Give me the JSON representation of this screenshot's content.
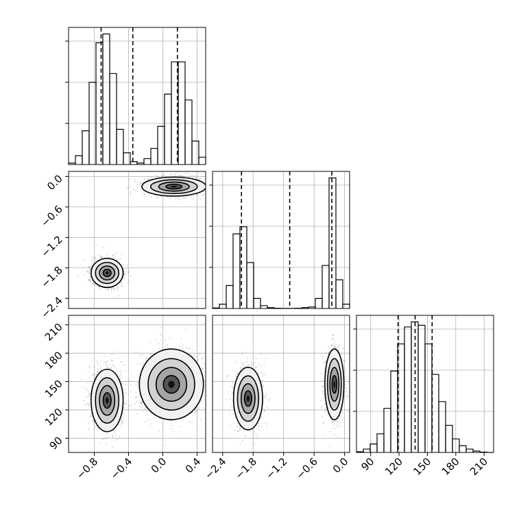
{
  "chart_data": {
    "type": "corner",
    "title": "",
    "grid": true,
    "parameters": [
      {
        "range": [
          -1.1,
          0.5
        ],
        "ticks": [
          -0.8,
          -0.4,
          0.0,
          0.4
        ],
        "tick_labels": [
          "−0.8",
          "−0.4",
          "0.0",
          "0.4"
        ],
        "quantiles": [
          -0.72,
          -0.35,
          0.17
        ],
        "histogram": {
          "edges": [
            -1.1,
            -1.02,
            -0.94,
            -0.86,
            -0.78,
            -0.7,
            -0.62,
            -0.54,
            -0.46,
            -0.38,
            -0.3,
            -0.22,
            -0.14,
            -0.06,
            0.02,
            0.1,
            0.18,
            0.26,
            0.34,
            0.42,
            0.5
          ],
          "counts": [
            0.5,
            3,
            11.5,
            28,
            41.5,
            44.5,
            31,
            12,
            4,
            1,
            0.5,
            2,
            5.5,
            13,
            24,
            35,
            35,
            22,
            8,
            2.5
          ]
        }
      },
      {
        "range": [
          -2.6,
          0.1
        ],
        "ticks": [
          -2.4,
          -1.8,
          -1.2,
          -0.6,
          0.0
        ],
        "tick_labels": [
          "−2.4",
          "−1.8",
          "−1.2",
          "−0.6",
          "0.0"
        ],
        "quantiles": [
          -2.03,
          -1.08,
          -0.25
        ],
        "histogram": {
          "edges": [
            -2.6,
            -2.465,
            -2.33,
            -2.195,
            -2.06,
            -1.925,
            -1.79,
            -1.655,
            -1.52,
            -1.385,
            -1.25,
            -1.115,
            -0.98,
            -0.845,
            -0.71,
            -0.575,
            -0.44,
            -0.305,
            -0.17,
            -0.035,
            0.1
          ],
          "counts": [
            0.2,
            1.5,
            8,
            26,
            28.5,
            16,
            3.5,
            1,
            0.3,
            0.1,
            0.05,
            0.05,
            0.1,
            0.3,
            0.5,
            3.5,
            15,
            45.5,
            10,
            1.5
          ]
        }
      },
      {
        "range": [
          75,
          220
        ],
        "ticks": [
          90,
          120,
          150,
          180,
          210
        ],
        "tick_labels": [
          "90",
          "120",
          "150",
          "180",
          "210"
        ],
        "quantiles": [
          119,
          137,
          155
        ],
        "histogram": {
          "edges": [
            75,
            82.25,
            89.5,
            96.75,
            104,
            111.25,
            118.5,
            125.75,
            133,
            140.25,
            147.5,
            154.75,
            162,
            169.25,
            176.5,
            183.75,
            191,
            198.25,
            205.5,
            212.75,
            220
          ],
          "counts": [
            0.2,
            1,
            2.5,
            5.5,
            13,
            24,
            32,
            37,
            38.5,
            37.5,
            32,
            23,
            15,
            8,
            4,
            2,
            1,
            0.4,
            0.1,
            0
          ]
        }
      }
    ],
    "clusters_2d": [
      {
        "pair": [
          0,
          1
        ],
        "center": [
          -0.65,
          -1.9
        ],
        "sigma": [
          0.085,
          0.13
        ],
        "points": 1600
      },
      {
        "pair": [
          0,
          1
        ],
        "center": [
          0.13,
          -0.2
        ],
        "sigma": [
          0.17,
          0.085
        ],
        "points": 1600
      },
      {
        "pair": [
          0,
          2
        ],
        "center": [
          -0.65,
          130
        ],
        "sigma": [
          0.085,
          15
        ],
        "points": 1600
      },
      {
        "pair": [
          0,
          2
        ],
        "center": [
          0.1,
          147
        ],
        "sigma": [
          0.17,
          17
        ],
        "points": 1600
      },
      {
        "pair": [
          1,
          2
        ],
        "center": [
          -1.9,
          132
        ],
        "sigma": [
          0.13,
          15
        ],
        "points": 1600
      },
      {
        "pair": [
          1,
          2
        ],
        "center": [
          -0.2,
          147
        ],
        "sigma": [
          0.085,
          17
        ],
        "points": 1600
      }
    ]
  }
}
